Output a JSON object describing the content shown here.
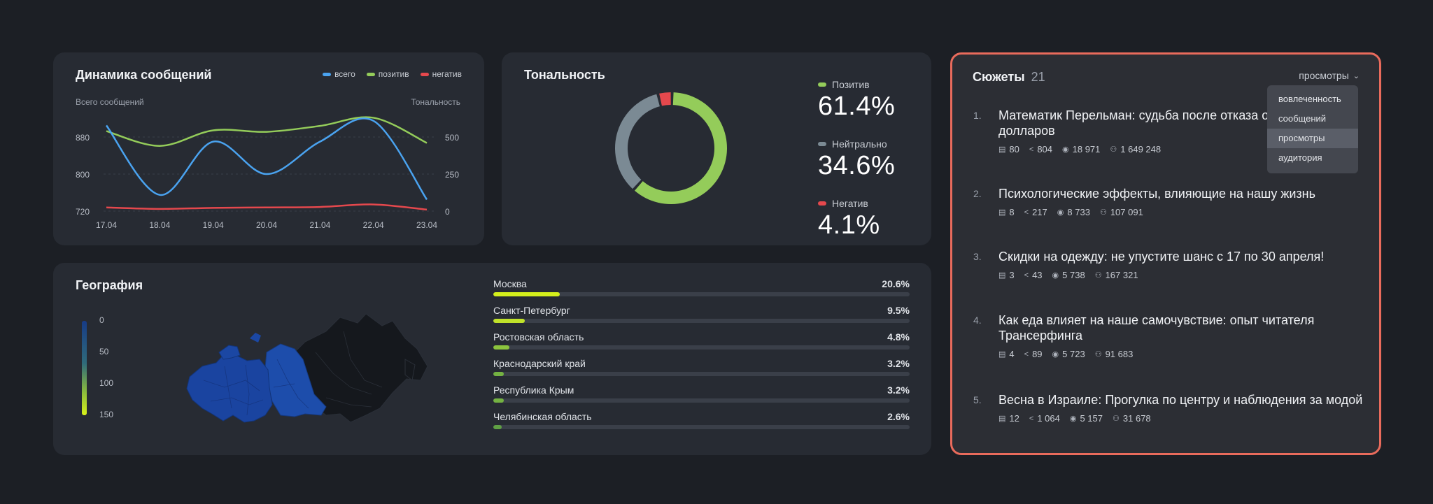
{
  "dynamics": {
    "title": "Динамика сообщений",
    "legend": [
      {
        "label": "всего",
        "color": "#4aa3f0"
      },
      {
        "label": "позитив",
        "color": "#94cc5a"
      },
      {
        "label": "негатив",
        "color": "#e5484d"
      }
    ],
    "left_axis_title": "Всего сообщений",
    "right_axis_title": "Тональность",
    "left_ticks": [
      "880",
      "800",
      "720"
    ],
    "right_ticks": [
      "500",
      "250",
      "0"
    ],
    "x_ticks": [
      "17.04",
      "18.04",
      "19.04",
      "20.04",
      "21.04",
      "22.04",
      "23.04"
    ]
  },
  "tonality": {
    "title": "Тональность",
    "items": [
      {
        "label": "Позитив",
        "value": "61.4%",
        "color": "#94cc5a"
      },
      {
        "label": "Нейтрально",
        "value": "34.6%",
        "color": "#7b8a94"
      },
      {
        "label": "Негатив",
        "value": "4.1%",
        "color": "#e5484d"
      }
    ]
  },
  "geography": {
    "title": "География",
    "scale": [
      "0",
      "50",
      "100",
      "150"
    ],
    "regions": [
      {
        "name": "Москва",
        "value": "20.6%",
        "fraction": 0.16,
        "color": "#d4f01c"
      },
      {
        "name": "Санкт-Петербург",
        "value": "9.5%",
        "fraction": 0.075,
        "color": "#c0e22a"
      },
      {
        "name": "Ростовская область",
        "value": "4.8%",
        "fraction": 0.038,
        "color": "#8cc43e"
      },
      {
        "name": "Краснодарский край",
        "value": "3.2%",
        "fraction": 0.026,
        "color": "#74b242"
      },
      {
        "name": "Республика Крым",
        "value": "3.2%",
        "fraction": 0.026,
        "color": "#74b242"
      },
      {
        "name": "Челябинская область",
        "value": "2.6%",
        "fraction": 0.02,
        "color": "#5fa044"
      }
    ]
  },
  "stories": {
    "title": "Сюжеты",
    "count": "21",
    "sort_label": "просмотры",
    "dropdown": [
      "вовлеченность",
      "сообщений",
      "просмотры",
      "аудитория"
    ],
    "dropdown_active": 2,
    "items": [
      {
        "num": "1.",
        "title": "Математик Перельман: судьба после отказа от миллиона долларов",
        "messages": "80",
        "shares": "804",
        "views": "18 971",
        "audience": "1 649 248"
      },
      {
        "num": "2.",
        "title": "Психологические эффекты, влияющие на нашу жизнь",
        "messages": "8",
        "shares": "217",
        "views": "8 733",
        "audience": "107 091"
      },
      {
        "num": "3.",
        "title": "Скидки на одежду: не упустите шанс с 17 по 30 апреля!",
        "messages": "3",
        "shares": "43",
        "views": "5 738",
        "audience": "167 321"
      },
      {
        "num": "4.",
        "title": "Как еда влияет на наше самочувствие: опыт читателя Трансерфинга",
        "messages": "4",
        "shares": "89",
        "views": "5 723",
        "audience": "91 683"
      },
      {
        "num": "5.",
        "title": "Весна в Израиле: Прогулка по центру и наблюдения за модой",
        "messages": "12",
        "shares": "1 064",
        "views": "5 157",
        "audience": "31 678"
      }
    ]
  },
  "chart_data": [
    {
      "type": "line",
      "title": "Динамика сообщений",
      "x": [
        "17.04",
        "18.04",
        "19.04",
        "20.04",
        "21.04",
        "22.04",
        "23.04"
      ],
      "ylabel": "Всего сообщений",
      "y2label": "Тональность",
      "ylim": [
        720,
        920
      ],
      "y2lim": [
        0,
        750
      ],
      "series": [
        {
          "name": "всего",
          "axis": "left",
          "color": "#4aa3f0",
          "values": [
            905,
            755,
            870,
            800,
            870,
            915,
            745
          ]
        },
        {
          "name": "позитив",
          "axis": "right",
          "color": "#94cc5a",
          "values": [
            540,
            440,
            545,
            535,
            575,
            630,
            460
          ]
        },
        {
          "name": "негатив",
          "axis": "right",
          "color": "#e5484d",
          "values": [
            25,
            15,
            22,
            25,
            28,
            45,
            10
          ]
        }
      ]
    },
    {
      "type": "pie",
      "title": "Тональность",
      "categories": [
        "Позитив",
        "Нейтрально",
        "Негатив"
      ],
      "values": [
        61.4,
        34.6,
        4.1
      ],
      "colors": [
        "#94cc5a",
        "#7b8a94",
        "#e5484d"
      ]
    },
    {
      "type": "bar",
      "categories": [
        "Москва",
        "Санкт-Петербург",
        "Ростовская область",
        "Краснодарский край",
        "Республика Крым",
        "Челябинская область"
      ],
      "values": [
        20.6,
        9.5,
        4.8,
        3.2,
        3.2,
        2.6
      ]
    }
  ]
}
